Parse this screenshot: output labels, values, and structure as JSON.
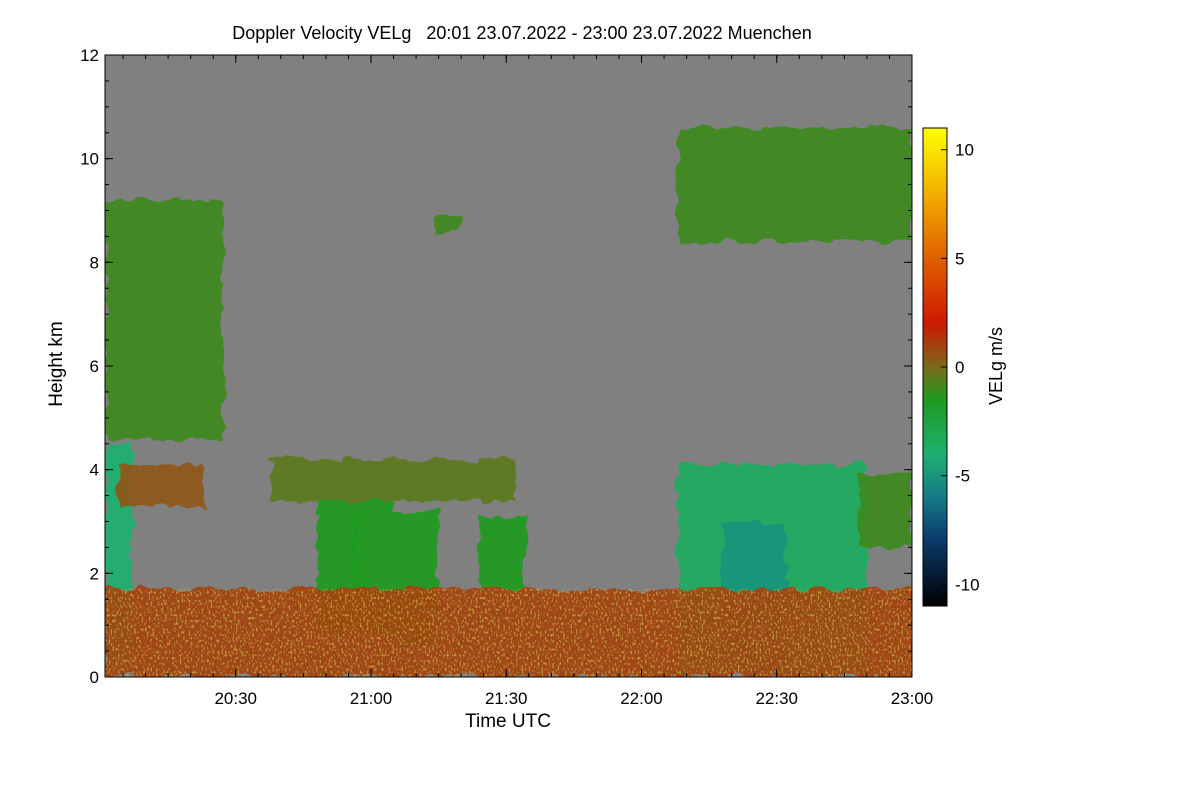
{
  "chart_data": {
    "type": "heatmap",
    "title": "Doppler Velocity VELg   20:01 23.07.2022 - 23:00 23.07.2022 Muenchen",
    "xlabel": "Time UTC",
    "ylabel": "Height km",
    "xlim": [
      "20:01",
      "23:00"
    ],
    "ylim": [
      0,
      12
    ],
    "x_ticks": [
      "20:30",
      "21:00",
      "21:30",
      "22:00",
      "22:30",
      "23:00"
    ],
    "y_ticks": [
      "0",
      "2",
      "4",
      "6",
      "8",
      "10",
      "12"
    ],
    "colorbar": {
      "label": "VELg m/s",
      "range": [
        -11,
        11
      ],
      "ticks": [
        "10",
        "5",
        "0",
        "-5",
        "-10"
      ],
      "tick_values": [
        10,
        5,
        0,
        -5,
        -10
      ],
      "colors": [
        {
          "value": 11,
          "color": "#ffff00"
        },
        {
          "value": 8,
          "color": "#f2b000"
        },
        {
          "value": 5,
          "color": "#e06000"
        },
        {
          "value": 2,
          "color": "#cc1a00"
        },
        {
          "value": 0,
          "color": "#7a6a1a"
        },
        {
          "value": -1.5,
          "color": "#1e9a1e"
        },
        {
          "value": -4,
          "color": "#1eb070"
        },
        {
          "value": -6,
          "color": "#167a88"
        },
        {
          "value": -8,
          "color": "#0a3a6a"
        },
        {
          "value": -11,
          "color": "#000000"
        }
      ]
    },
    "background_color": "#808080",
    "echo_regions": [
      {
        "name": "early cloud column",
        "time": [
          "20:01",
          "20:27"
        ],
        "height_km": [
          4.6,
          9.2
        ],
        "velocity_ms": -1
      },
      {
        "name": "early precipitation shaft",
        "time": [
          "20:01",
          "20:07"
        ],
        "height_km": [
          0.1,
          4.5
        ],
        "velocity_ms": -4
      },
      {
        "name": "early mid-level layer",
        "time": [
          "20:04",
          "20:23"
        ],
        "height_km": [
          3.3,
          4.1
        ],
        "velocity_ms": 0.5
      },
      {
        "name": "upper cloud right",
        "time": [
          "22:08",
          "23:00"
        ],
        "height_km": [
          8.4,
          10.6
        ],
        "velocity_ms": -1
      },
      {
        "name": "small upper patch",
        "time": [
          "21:14",
          "21:20"
        ],
        "height_km": [
          8.6,
          8.9
        ],
        "velocity_ms": -1
      },
      {
        "name": "mid-level layer",
        "time": [
          "20:38",
          "21:32"
        ],
        "height_km": [
          3.4,
          4.2
        ],
        "velocity_ms": -0.5
      },
      {
        "name": "fallstreak 1",
        "time": [
          "20:48",
          "20:57"
        ],
        "height_km": [
          0.8,
          3.4
        ],
        "velocity_ms": -1.5
      },
      {
        "name": "fallstreak 2",
        "time": [
          "20:56",
          "21:05"
        ],
        "height_km": [
          0.8,
          3.4
        ],
        "velocity_ms": -1.5
      },
      {
        "name": "fallstreak 3",
        "time": [
          "21:05",
          "21:15"
        ],
        "height_km": [
          0.6,
          3.2
        ],
        "velocity_ms": -1.5
      },
      {
        "name": "fallstreak 4",
        "time": [
          "21:24",
          "21:34"
        ],
        "height_km": [
          1.7,
          3.1
        ],
        "velocity_ms": -1.5
      },
      {
        "name": "late storm column",
        "time": [
          "22:08",
          "22:50"
        ],
        "height_km": [
          0.1,
          4.1
        ],
        "velocity_ms": -3.5
      },
      {
        "name": "late storm core",
        "time": [
          "22:18",
          "22:32"
        ],
        "height_km": [
          0.1,
          3.0
        ],
        "velocity_ms": -5
      },
      {
        "name": "late mid-level layer",
        "time": [
          "22:48",
          "23:00"
        ],
        "height_km": [
          2.5,
          3.9
        ],
        "velocity_ms": -1
      },
      {
        "name": "boundary layer clutter",
        "time": [
          "20:01",
          "23:00"
        ],
        "height_km": [
          0.0,
          1.7
        ],
        "velocity_ms": 1
      }
    ]
  }
}
